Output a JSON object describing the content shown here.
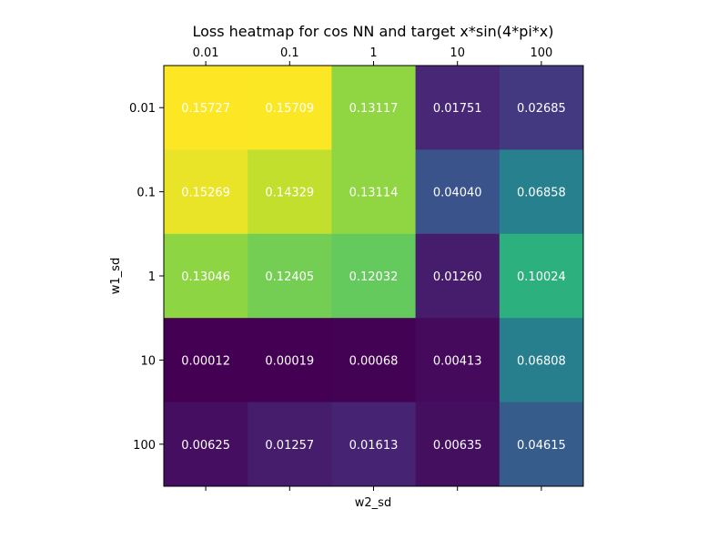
{
  "chart_data": {
    "type": "heatmap",
    "title": "Loss heatmap for cos NN and target x*sin(4*pi*x)",
    "xlabel": "w2_sd",
    "ylabel": "w1_sd",
    "x_categories": [
      "0.01",
      "0.1",
      "1",
      "10",
      "100"
    ],
    "y_categories": [
      "0.01",
      "0.1",
      "1",
      "10",
      "100"
    ],
    "values": [
      [
        0.15727,
        0.15709,
        0.13117,
        0.01751,
        0.02685
      ],
      [
        0.15269,
        0.14329,
        0.13114,
        0.0404,
        0.06858
      ],
      [
        0.13046,
        0.12405,
        0.12032,
        0.0126,
        0.10024
      ],
      [
        0.00012,
        0.00019,
        0.00068,
        0.00413,
        0.06808
      ],
      [
        0.00625,
        0.01257,
        0.01613,
        0.00635,
        0.04615
      ]
    ],
    "cell_labels": [
      [
        "0.15727",
        "0.15709",
        "0.13117",
        "0.01751",
        "0.02685"
      ],
      [
        "0.15269",
        "0.14329",
        "0.13114",
        "0.04040",
        "0.06858"
      ],
      [
        "0.13046",
        "0.12405",
        "0.12032",
        "0.01260",
        "0.10024"
      ],
      [
        "0.00012",
        "0.00019",
        "0.00068",
        "0.00413",
        "0.06808"
      ],
      [
        "0.00625",
        "0.01257",
        "0.01613",
        "0.00635",
        "0.04615"
      ]
    ],
    "colormap": "viridis",
    "x_ticks_position": "top",
    "grid": false,
    "legend": "none"
  }
}
